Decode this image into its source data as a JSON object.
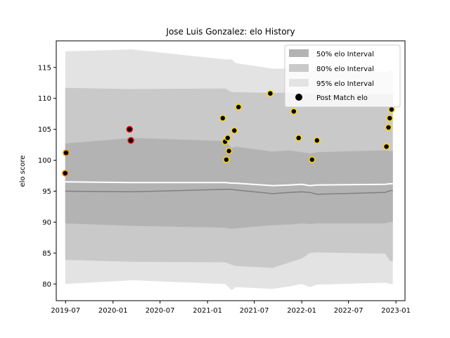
{
  "chart_data": {
    "type": "scatter",
    "title": "Jose Luis Gonzalez: elo History",
    "xlabel": "",
    "ylabel": "elo score",
    "xlim": [
      "2019-05-26",
      "2023-02-05"
    ],
    "ylim": [
      77.3,
      119.3
    ],
    "x_ticks": [
      "2019-07",
      "2020-01",
      "2020-07",
      "2021-01",
      "2021-07",
      "2022-01",
      "2022-07",
      "2023-01"
    ],
    "y_ticks": [
      80,
      85,
      90,
      95,
      100,
      105,
      110,
      115
    ],
    "grid": false,
    "legend_position": "top-right",
    "legend": [
      {
        "label": "50% elo Interval",
        "kind": "band",
        "color": "#b3b3b3"
      },
      {
        "label": "80% elo Interval",
        "kind": "band",
        "color": "#c9c9c9"
      },
      {
        "label": "95% elo Interval",
        "kind": "band",
        "color": "#e3e3e3"
      },
      {
        "label": "Post Match elo",
        "kind": "marker",
        "color": "#000000"
      }
    ],
    "bands": {
      "x": [
        "2019-06-30",
        "2020-03-15",
        "2021-03-10",
        "2021-04-05",
        "2021-04-20",
        "2021-09-10",
        "2021-11-15",
        "2022-01-01",
        "2022-02-01",
        "2022-03-01",
        "2022-11-20",
        "2022-12-10",
        "2022-12-20"
      ],
      "p95_upper": [
        117.6,
        117.9,
        116.3,
        116.3,
        115.7,
        114.8,
        114.8,
        114.7,
        114.6,
        114.4,
        114.3,
        114.5,
        114.5
      ],
      "p80_upper": [
        111.7,
        111.5,
        111.6,
        111.0,
        111.0,
        110.9,
        110.9,
        110.7,
        110.8,
        110.7,
        110.7,
        110.8,
        110.8
      ],
      "p50_upper": [
        102.7,
        103.6,
        103.1,
        102.0,
        102.2,
        101.4,
        101.6,
        101.3,
        101.1,
        101.3,
        101.6,
        101.5,
        101.5
      ],
      "p50_lower": [
        89.8,
        89.4,
        89.1,
        88.9,
        89.0,
        89.5,
        89.6,
        89.8,
        89.7,
        89.8,
        89.8,
        90.0,
        90.0
      ],
      "p80_lower": [
        83.9,
        83.6,
        83.5,
        83.1,
        82.9,
        82.6,
        83.5,
        84.1,
        85.0,
        85.1,
        84.9,
        83.7,
        83.7
      ],
      "p95_lower": [
        80.0,
        80.6,
        80.0,
        79.0,
        79.5,
        79.2,
        79.6,
        80.0,
        79.5,
        79.9,
        80.2,
        80.0,
        80.0
      ],
      "median": [
        95.0,
        94.9,
        95.3,
        95.3,
        95.2,
        94.6,
        94.8,
        94.9,
        94.8,
        94.5,
        94.8,
        95.1,
        95.1
      ],
      "mean": [
        96.5,
        96.4,
        96.4,
        96.3,
        96.3,
        95.9,
        96.0,
        96.1,
        95.9,
        96.0,
        96.1,
        96.2,
        96.2
      ]
    },
    "series": [
      {
        "points": [
          {
            "x": "2019-06-30",
            "y": 97.9,
            "edge": "orange"
          },
          {
            "x": "2019-07-03",
            "y": 101.2,
            "edge": "orange"
          },
          {
            "x": "2020-03-05",
            "y": 105.0,
            "edge": "red"
          },
          {
            "x": "2020-03-10",
            "y": 103.2,
            "edge": "red"
          },
          {
            "x": "2021-03-01",
            "y": 106.8,
            "edge": "gold"
          },
          {
            "x": "2021-03-10",
            "y": 103.0,
            "edge": "gold"
          },
          {
            "x": "2021-03-15",
            "y": 100.1,
            "edge": "gold"
          },
          {
            "x": "2021-03-20",
            "y": 103.6,
            "edge": "gold"
          },
          {
            "x": "2021-03-25",
            "y": 101.5,
            "edge": "gold"
          },
          {
            "x": "2021-04-15",
            "y": 104.8,
            "edge": "gold"
          },
          {
            "x": "2021-05-01",
            "y": 108.6,
            "edge": "gold"
          },
          {
            "x": "2021-09-01",
            "y": 110.8,
            "edge": "gold"
          },
          {
            "x": "2021-12-01",
            "y": 107.9,
            "edge": "gold"
          },
          {
            "x": "2021-12-20",
            "y": 103.6,
            "edge": "gold"
          },
          {
            "x": "2022-02-10",
            "y": 100.1,
            "edge": "gold"
          },
          {
            "x": "2022-03-01",
            "y": 103.2,
            "edge": "gold"
          },
          {
            "x": "2022-11-25",
            "y": 102.2,
            "edge": "gold"
          },
          {
            "x": "2022-12-03",
            "y": 105.3,
            "edge": "gold"
          },
          {
            "x": "2022-12-08",
            "y": 106.8,
            "edge": "gold"
          },
          {
            "x": "2022-12-15",
            "y": 108.2,
            "edge": "gold"
          }
        ]
      }
    ],
    "colors": {
      "band95": "#e3e3e3",
      "band80": "#c9c9c9",
      "band50": "#b3b3b3",
      "median": "#808080",
      "mean": "#ffffff",
      "point_fill": "#000000",
      "edge_orange": "#ff8c00",
      "edge_red": "#ff0000",
      "edge_gold": "#ffd700"
    }
  }
}
